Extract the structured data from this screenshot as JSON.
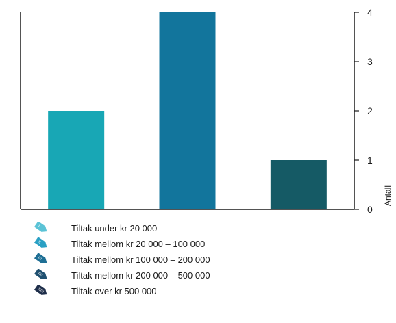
{
  "chart_data": {
    "type": "bar",
    "categories": [
      "Tiltak under kr 20 000",
      "Tiltak mellom kr 20 000 – 100 000",
      "Tiltak mellom kr 100 000 – 200 000"
    ],
    "values": [
      2,
      4,
      1
    ],
    "colors": [
      "#18a7b5",
      "#12759c",
      "#155a65"
    ],
    "ylabel": "Antall",
    "ylim": [
      0,
      4
    ],
    "yticks": [
      0,
      1,
      2,
      3,
      4
    ],
    "y_axis_side": "right",
    "grid": false,
    "legend_position": "bottom-left"
  },
  "legend": {
    "items": [
      {
        "label": "Tiltak under kr 20 000",
        "color": "#5bc3d6",
        "icon": "tag-icon"
      },
      {
        "label": "Tiltak mellom kr 20 000 – 100 000",
        "color": "#2aa0c4",
        "icon": "tag-icon"
      },
      {
        "label": "Tiltak mellom kr 100 000 – 200 000",
        "color": "#1e6f95",
        "icon": "tag-icon"
      },
      {
        "label": "Tiltak mellom kr 200 000 – 500 000",
        "color": "#1f5070",
        "icon": "tag-icon"
      },
      {
        "label": "Tiltak over kr 500 000",
        "color": "#1e2e4a",
        "icon": "tag-icon"
      }
    ]
  }
}
